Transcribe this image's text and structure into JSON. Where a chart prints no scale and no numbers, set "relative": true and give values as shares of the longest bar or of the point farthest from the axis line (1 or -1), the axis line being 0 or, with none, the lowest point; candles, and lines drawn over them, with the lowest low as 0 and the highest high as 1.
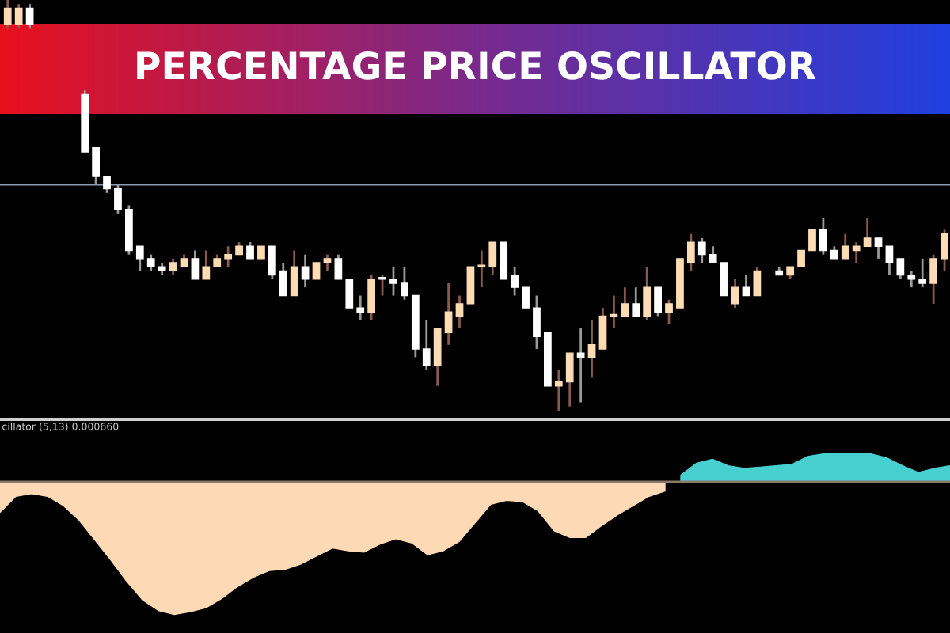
{
  "chart_data": [
    {
      "type": "candlestick",
      "relative": true,
      "title": "PERCENTAGE PRICE OSCILLATOR",
      "categories": [
        null,
        null,
        null,
        null,
        null,
        null,
        null,
        null,
        null,
        null,
        null,
        null,
        null,
        null,
        null,
        null,
        null,
        null,
        null,
        null,
        null,
        null,
        null,
        null,
        null,
        null,
        null,
        null,
        null,
        null,
        null,
        null,
        null,
        null,
        null,
        null,
        null,
        null,
        null,
        null,
        null,
        null,
        null,
        null,
        null,
        null,
        null,
        null,
        null,
        null,
        null,
        null,
        null,
        null,
        null,
        null,
        null,
        null,
        null,
        null,
        null,
        null,
        null,
        null,
        null,
        null,
        null,
        null,
        null,
        null,
        null,
        null,
        null,
        null,
        null,
        null,
        null,
        null,
        null,
        null,
        null,
        null,
        null,
        null,
        null,
        null
      ],
      "ohlc": [
        [
          0.94,
          1.0,
          0.93,
          0.98
        ],
        [
          0.94,
          0.99,
          0.93,
          0.98
        ],
        [
          0.98,
          0.99,
          0.93,
          0.94
        ],
        null,
        null,
        null,
        null,
        [
          0.77,
          0.78,
          0.63,
          0.63
        ],
        [
          0.64,
          0.64,
          0.55,
          0.57
        ],
        [
          0.57,
          0.57,
          0.53,
          0.54
        ],
        [
          0.54,
          0.55,
          0.48,
          0.49
        ],
        [
          0.49,
          0.5,
          0.38,
          0.39
        ],
        [
          0.4,
          0.4,
          0.34,
          0.37
        ],
        [
          0.37,
          0.38,
          0.34,
          0.35
        ],
        [
          0.35,
          0.36,
          0.33,
          0.34
        ],
        [
          0.34,
          0.37,
          0.33,
          0.36
        ],
        [
          0.35,
          0.38,
          0.35,
          0.37
        ],
        [
          0.37,
          0.39,
          0.32,
          0.32
        ],
        [
          0.32,
          0.39,
          0.32,
          0.35
        ],
        [
          0.35,
          0.38,
          0.35,
          0.37
        ],
        [
          0.37,
          0.4,
          0.35,
          0.38
        ],
        [
          0.38,
          0.41,
          0.38,
          0.4
        ],
        [
          0.4,
          0.41,
          0.37,
          0.37
        ],
        [
          0.37,
          0.4,
          0.37,
          0.4
        ],
        [
          0.4,
          0.4,
          0.32,
          0.33
        ],
        [
          0.34,
          0.36,
          0.28,
          0.28
        ],
        [
          0.28,
          0.39,
          0.28,
          0.35
        ],
        [
          0.35,
          0.38,
          0.3,
          0.32
        ],
        [
          0.32,
          0.36,
          0.32,
          0.36
        ],
        [
          0.36,
          0.38,
          0.34,
          0.37
        ],
        [
          0.37,
          0.38,
          0.32,
          0.32
        ],
        [
          0.32,
          0.32,
          0.25,
          0.25
        ],
        [
          0.25,
          0.28,
          0.22,
          0.24
        ],
        [
          0.24,
          0.33,
          0.22,
          0.32
        ],
        [
          0.32,
          0.33,
          0.28,
          0.32
        ],
        [
          0.32,
          0.35,
          0.28,
          0.31
        ],
        [
          0.31,
          0.35,
          0.27,
          0.28
        ],
        [
          0.28,
          0.28,
          0.13,
          0.15
        ],
        [
          0.15,
          0.22,
          0.1,
          0.11
        ],
        [
          0.11,
          0.2,
          0.06,
          0.2
        ],
        [
          0.19,
          0.31,
          0.16,
          0.24
        ],
        [
          0.23,
          0.28,
          0.2,
          0.26
        ],
        [
          0.26,
          0.35,
          0.26,
          0.35
        ],
        [
          0.35,
          0.39,
          0.3,
          0.35
        ],
        [
          0.35,
          0.41,
          0.33,
          0.41
        ],
        [
          0.41,
          0.41,
          0.32,
          0.32
        ],
        [
          0.33,
          0.35,
          0.28,
          0.3
        ],
        [
          0.3,
          0.3,
          0.25,
          0.25
        ],
        [
          0.25,
          0.28,
          0.15,
          0.18
        ],
        [
          0.19,
          0.19,
          0.06,
          0.06
        ],
        [
          0.06,
          0.1,
          0.0,
          0.07
        ],
        [
          0.07,
          0.14,
          0.01,
          0.14
        ],
        [
          0.14,
          0.2,
          0.02,
          0.13
        ],
        [
          0.13,
          0.22,
          0.08,
          0.16
        ],
        [
          0.15,
          0.25,
          0.15,
          0.23
        ],
        [
          0.23,
          0.28,
          0.2,
          0.23
        ],
        [
          0.23,
          0.3,
          0.23,
          0.26
        ],
        [
          0.26,
          0.3,
          0.23,
          0.23
        ],
        [
          0.23,
          0.35,
          0.22,
          0.3
        ],
        [
          0.3,
          0.3,
          0.23,
          0.24
        ],
        [
          0.24,
          0.27,
          0.21,
          0.26
        ],
        [
          0.25,
          0.37,
          0.25,
          0.37
        ],
        [
          0.36,
          0.43,
          0.34,
          0.41
        ],
        [
          0.41,
          0.42,
          0.36,
          0.38
        ],
        [
          0.38,
          0.4,
          0.36,
          0.36
        ],
        [
          0.36,
          0.36,
          0.28,
          0.28
        ],
        [
          0.26,
          0.32,
          0.25,
          0.3
        ],
        [
          0.3,
          0.33,
          0.28,
          0.28
        ],
        [
          0.28,
          0.35,
          0.28,
          0.34
        ],
        null,
        [
          0.34,
          0.35,
          0.33,
          0.33
        ],
        [
          0.33,
          0.35,
          0.32,
          0.35
        ],
        [
          0.35,
          0.39,
          0.35,
          0.39
        ],
        [
          0.39,
          0.44,
          0.39,
          0.44
        ],
        [
          0.44,
          0.47,
          0.38,
          0.39
        ],
        [
          0.39,
          0.4,
          0.37,
          0.37
        ],
        [
          0.37,
          0.43,
          0.37,
          0.4
        ],
        [
          0.39,
          0.41,
          0.36,
          0.4
        ],
        [
          0.4,
          0.47,
          0.4,
          0.42
        ],
        [
          0.42,
          0.42,
          0.37,
          0.4
        ],
        [
          0.4,
          0.4,
          0.33,
          0.36
        ],
        [
          0.37,
          0.37,
          0.32,
          0.33
        ],
        [
          0.33,
          0.34,
          0.3,
          0.32
        ],
        [
          0.32,
          0.37,
          0.3,
          0.31
        ],
        [
          0.31,
          0.38,
          0.26,
          0.37
        ],
        [
          0.37,
          0.44,
          0.34,
          0.43
        ]
      ],
      "colors": [
        "#fddcb4",
        "#fddcb4",
        "#ffffff",
        null,
        null,
        null,
        null,
        "#ffffff",
        "#ffffff",
        "#ffffff",
        "#ffffff",
        "#ffffff",
        "#ffffff",
        "#ffffff",
        "#ffffff",
        "#fddcb4",
        "#fddcb4",
        "#ffffff",
        "#fddcb4",
        "#fddcb4",
        "#fddcb4",
        "#fddcb4",
        "#ffffff",
        "#fddcb4",
        "#ffffff",
        "#ffffff",
        "#fddcb4",
        "#ffffff",
        "#fddcb4",
        "#fddcb4",
        "#ffffff",
        "#ffffff",
        "#ffffff",
        "#fddcb4",
        "#ffffff",
        "#ffffff",
        "#ffffff",
        "#ffffff",
        "#ffffff",
        "#fddcb4",
        "#fddcb4",
        "#fddcb4",
        "#fddcb4",
        "#fddcb4",
        "#fddcb4",
        "#ffffff",
        "#ffffff",
        "#ffffff",
        "#ffffff",
        "#ffffff",
        "#fddcb4",
        "#fddcb4",
        "#ffffff",
        "#fddcb4",
        "#fddcb4",
        "#fddcb4",
        "#fddcb4",
        "#ffffff",
        "#fddcb4",
        "#ffffff",
        "#fddcb4",
        "#fddcb4",
        "#fddcb4",
        "#ffffff",
        "#ffffff",
        "#ffffff",
        "#fddcb4",
        "#ffffff",
        "#fddcb4",
        null,
        "#ffffff",
        "#fddcb4",
        "#fddcb4",
        "#fddcb4",
        "#ffffff",
        "#ffffff",
        "#fddcb4",
        "#fddcb4",
        "#fddcb4",
        "#ffffff",
        "#ffffff",
        "#ffffff",
        "#ffffff",
        "#ffffff",
        "#fddcb4",
        "#fddcb4"
      ],
      "ref_lines": [
        {
          "axis": "y",
          "value": 0.55,
          "color": "#8a9bb0"
        }
      ]
    },
    {
      "type": "area",
      "relative": true,
      "annotations": [
        "cillator (5,13) 0.000660"
      ],
      "categories": [
        null,
        null,
        null,
        null,
        null,
        null,
        null,
        null,
        null,
        null,
        null,
        null,
        null,
        null,
        null,
        null,
        null,
        null,
        null,
        null,
        null,
        null,
        null,
        null,
        null,
        null,
        null,
        null,
        null,
        null,
        null,
        null,
        null,
        null,
        null,
        null,
        null,
        null,
        null,
        null,
        null,
        null,
        null,
        null,
        null,
        null,
        null,
        null,
        null,
        null,
        null,
        null,
        null,
        null,
        null,
        null,
        null,
        null,
        null,
        null,
        null
      ],
      "series": [
        {
          "color": "#fdd9b5",
          "values": [
            -0.23,
            -0.11,
            -0.09,
            -0.11,
            -0.18,
            -0.29,
            -0.44,
            -0.59,
            -0.75,
            -0.89,
            -0.97,
            -1,
            -0.98,
            -0.95,
            -0.88,
            -0.79,
            -0.72,
            -0.67,
            -0.66,
            -0.62,
            -0.56,
            -0.5,
            -0.52,
            -0.53,
            -0.47,
            -0.43,
            -0.46,
            -0.55,
            -0.52,
            -0.45,
            -0.31,
            -0.17,
            -0.14,
            -0.15,
            -0.22,
            -0.37,
            -0.42,
            -0.42,
            -0.33,
            -0.25,
            -0.18,
            -0.11,
            -0.07,
            null,
            null,
            null,
            null,
            null,
            null,
            null,
            null,
            null,
            null,
            null,
            null,
            null,
            null,
            null,
            null,
            null,
            null
          ]
        },
        {
          "color": "#48cfcf",
          "values": [
            null,
            null,
            null,
            null,
            null,
            null,
            null,
            null,
            null,
            null,
            null,
            null,
            null,
            null,
            null,
            null,
            null,
            null,
            null,
            null,
            null,
            null,
            null,
            null,
            null,
            null,
            null,
            null,
            null,
            null,
            null,
            null,
            null,
            null,
            null,
            null,
            null,
            null,
            null,
            null,
            null,
            null,
            null,
            0.05,
            0.14,
            0.17,
            0.12,
            0.1,
            0.11,
            0.12,
            0.13,
            0.19,
            0.21,
            0.21,
            0.21,
            0.21,
            0.18,
            0.12,
            0.07,
            0.1,
            0.12
          ]
        }
      ]
    }
  ]
}
